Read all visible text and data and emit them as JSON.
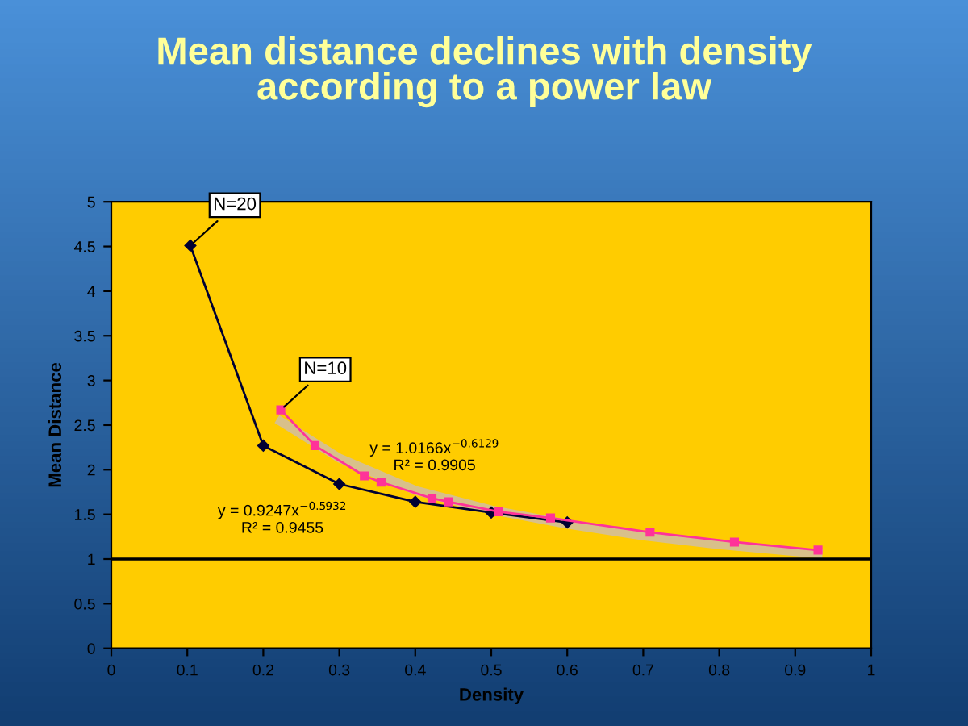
{
  "chart_data": {
    "type": "line",
    "title": "Mean distance declines with density\naccording to a power law",
    "xlabel": "Density",
    "ylabel": "Mean Distance",
    "xlim": [
      0,
      1
    ],
    "xticks": [
      0,
      0.1,
      0.2,
      0.3,
      0.4,
      0.5,
      0.6,
      0.7,
      0.8,
      0.9,
      1
    ],
    "ylim": [
      0,
      5
    ],
    "yticks": [
      0,
      0.5,
      1,
      1.5,
      2,
      2.5,
      3,
      3.5,
      4,
      4.5,
      5
    ],
    "grid": false,
    "legend": false,
    "series": [
      {
        "type": "line",
        "color": "#d8c08a",
        "x": [
          0.223,
          0.3,
          0.4,
          0.5,
          0.6,
          0.7,
          0.8,
          0.93
        ],
        "values": [
          2.54,
          2.13,
          1.77,
          1.55,
          1.39,
          1.26,
          1.16,
          1.06
        ],
        "marker": "none"
      },
      {
        "color": "#000033",
        "x": [
          0.104,
          0.2,
          0.3,
          0.4,
          0.5,
          0.6
        ],
        "values": [
          4.51,
          2.27,
          1.84,
          1.64,
          1.52,
          1.41
        ],
        "marker": "diamond"
      },
      {
        "color": "#ff3399",
        "x": [
          0.223,
          0.268,
          0.333,
          0.355,
          0.422,
          0.444,
          0.51,
          0.578,
          0.709,
          0.82,
          0.93
        ],
        "values": [
          2.67,
          2.27,
          1.93,
          1.86,
          1.68,
          1.64,
          1.53,
          1.46,
          1.3,
          1.19,
          1.1
        ],
        "marker": "square"
      }
    ],
    "ref_lines": [
      {
        "axis": "y",
        "value": 1,
        "color": "#000000"
      }
    ],
    "annotations": [
      {
        "text": "N=20",
        "x": 0.104,
        "y": 4.51
      },
      {
        "text": "N=10",
        "x": 0.223,
        "y": 2.67
      },
      "y = 1.0166x$^{−0.6129}$\nR² = 0.9905",
      "y = 0.9247x$^{−0.5932}$\nR² = 0.9455"
    ]
  }
}
